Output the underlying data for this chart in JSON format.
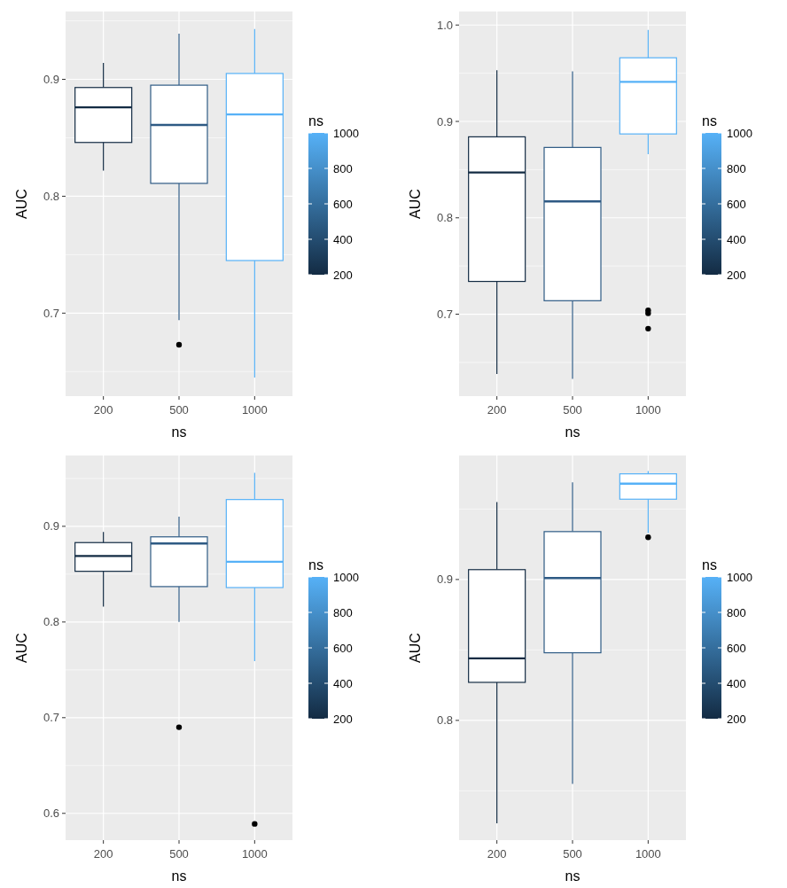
{
  "chart_data": [
    {
      "type": "box",
      "xlabel": "ns",
      "ylabel": "AUC",
      "clabel": "ns",
      "categories": [
        "200",
        "500",
        "1000"
      ],
      "colors": [
        "#132b43",
        "#2e5a84",
        "#56b1f7"
      ],
      "clim": [
        200,
        1000
      ],
      "cticks": [
        200,
        400,
        600,
        800,
        1000
      ],
      "ylim": [
        0.629,
        0.958
      ],
      "yticks": [
        0.7,
        0.8,
        0.9
      ],
      "grid": true,
      "boxes": [
        {
          "low": 0.822,
          "q1": 0.846,
          "median": 0.876,
          "q3": 0.893,
          "high": 0.914
        },
        {
          "low": 0.694,
          "q1": 0.811,
          "median": 0.861,
          "q3": 0.895,
          "high": 0.939,
          "outliers": [
            0.673
          ]
        },
        {
          "low": 0.645,
          "q1": 0.745,
          "median": 0.87,
          "q3": 0.905,
          "high": 0.943
        }
      ]
    },
    {
      "type": "box",
      "xlabel": "ns",
      "ylabel": "AUC",
      "clabel": "ns",
      "categories": [
        "200",
        "500",
        "1000"
      ],
      "colors": [
        "#132b43",
        "#2e5a84",
        "#56b1f7"
      ],
      "clim": [
        200,
        1000
      ],
      "cticks": [
        200,
        400,
        600,
        800,
        1000
      ],
      "ylim": [
        0.615,
        1.014
      ],
      "yticks": [
        0.7,
        0.8,
        0.9,
        {
          "value": 1,
          "label": "1.0"
        }
      ],
      "grid": true,
      "boxes": [
        {
          "low": 0.638,
          "q1": 0.734,
          "median": 0.847,
          "q3": 0.884,
          "high": 0.953
        },
        {
          "low": 0.633,
          "q1": 0.714,
          "median": 0.817,
          "q3": 0.873,
          "high": 0.952
        },
        {
          "low": 0.866,
          "q1": 0.887,
          "median": 0.941,
          "q3": 0.966,
          "high": 0.995,
          "outliers": [
            0.704,
            0.701,
            0.685
          ]
        }
      ]
    },
    {
      "type": "box",
      "xlabel": "ns",
      "ylabel": "AUC",
      "clabel": "ns",
      "categories": [
        "200",
        "500",
        "1000"
      ],
      "colors": [
        "#132b43",
        "#2e5a84",
        "#56b1f7"
      ],
      "clim": [
        200,
        1000
      ],
      "cticks": [
        200,
        400,
        600,
        800,
        1000
      ],
      "ylim": [
        0.572,
        0.974
      ],
      "yticks": [
        0.6,
        0.7,
        0.8,
        0.9
      ],
      "grid": true,
      "boxes": [
        {
          "low": 0.816,
          "q1": 0.853,
          "median": 0.869,
          "q3": 0.883,
          "high": 0.894
        },
        {
          "low": 0.8,
          "q1": 0.837,
          "median": 0.882,
          "q3": 0.889,
          "high": 0.91,
          "outliers": [
            0.69
          ]
        },
        {
          "low": 0.759,
          "q1": 0.836,
          "median": 0.863,
          "q3": 0.928,
          "high": 0.956,
          "outliers": [
            0.589
          ]
        }
      ]
    },
    {
      "type": "box",
      "xlabel": "ns",
      "ylabel": "AUC",
      "clabel": "ns",
      "categories": [
        "200",
        "500",
        "1000"
      ],
      "colors": [
        "#132b43",
        "#2e5a84",
        "#56b1f7"
      ],
      "clim": [
        200,
        1000
      ],
      "cticks": [
        200,
        400,
        600,
        800,
        1000
      ],
      "ylim": [
        0.715,
        0.988
      ],
      "yticks": [
        0.8,
        0.9
      ],
      "grid": true,
      "boxes": [
        {
          "low": 0.727,
          "q1": 0.827,
          "median": 0.844,
          "q3": 0.907,
          "high": 0.955
        },
        {
          "low": 0.755,
          "q1": 0.848,
          "median": 0.901,
          "q3": 0.934,
          "high": 0.969
        },
        {
          "low": 0.933,
          "q1": 0.957,
          "median": 0.968,
          "q3": 0.975,
          "high": 0.977,
          "outliers": [
            0.93
          ]
        }
      ]
    }
  ]
}
